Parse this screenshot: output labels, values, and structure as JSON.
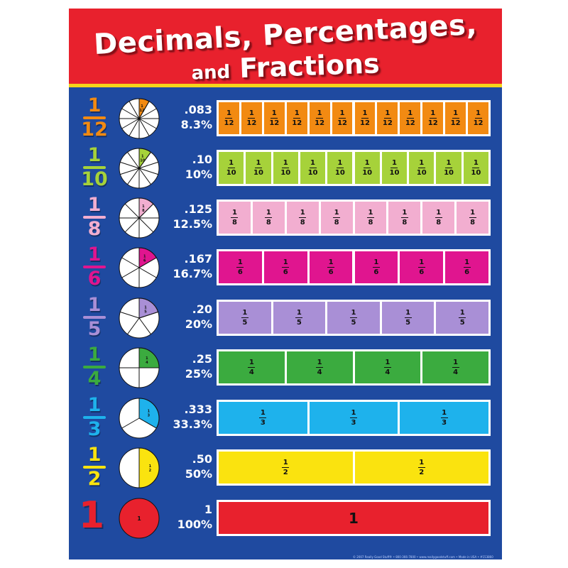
{
  "title": {
    "line1": "Decimals, Percentages,",
    "line2_small": "and",
    "line2_main": "Fractions"
  },
  "rows": [
    {
      "num": "1",
      "den": "12",
      "color": "#f28a12",
      "decimal": ".083",
      "percent": "8.3%",
      "parts": 12,
      "label_num": "1",
      "label_den": "12"
    },
    {
      "num": "1",
      "den": "10",
      "color": "#a6d23a",
      "decimal": ".10",
      "percent": "10%",
      "parts": 10,
      "label_num": "1",
      "label_den": "10"
    },
    {
      "num": "1",
      "den": "8",
      "color": "#f2aed0",
      "decimal": ".125",
      "percent": "12.5%",
      "parts": 8,
      "label_num": "1",
      "label_den": "8"
    },
    {
      "num": "1",
      "den": "6",
      "color": "#e0158f",
      "decimal": ".167",
      "percent": "16.7%",
      "parts": 6,
      "label_num": "1",
      "label_den": "6"
    },
    {
      "num": "1",
      "den": "5",
      "color": "#a98fd6",
      "decimal": ".20",
      "percent": "20%",
      "parts": 5,
      "label_num": "1",
      "label_den": "5"
    },
    {
      "num": "1",
      "den": "4",
      "color": "#3bab3f",
      "decimal": ".25",
      "percent": "25%",
      "parts": 4,
      "label_num": "1",
      "label_den": "4"
    },
    {
      "num": "1",
      "den": "3",
      "color": "#1eb2ec",
      "decimal": ".333",
      "percent": "33.3%",
      "parts": 3,
      "label_num": "1",
      "label_den": "3"
    },
    {
      "num": "1",
      "den": "2",
      "color": "#fae30f",
      "decimal": ".50",
      "percent": "50%",
      "parts": 2,
      "label_num": "1",
      "label_den": "2"
    },
    {
      "whole": "1",
      "color": "#e8212d",
      "decimal": "1",
      "percent": "100%",
      "parts": 1,
      "label_whole": "1"
    }
  ],
  "footer": "© 2007 Really Good Stuff® • 800-366-7800 • www.reallygoodstuff.com • Made in USA • #153860"
}
